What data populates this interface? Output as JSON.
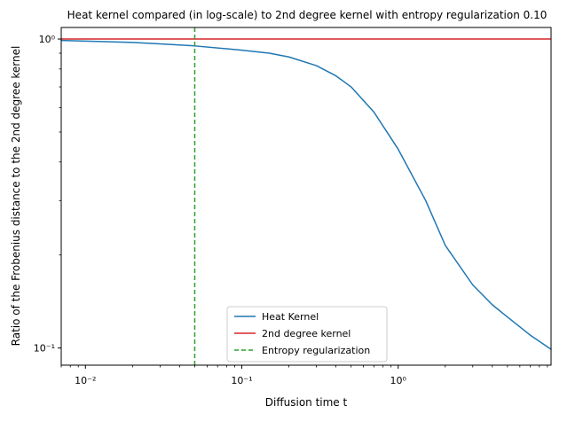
{
  "chart_data": {
    "type": "line",
    "title": "Heat kernel compared (in log-scale) to 2nd degree kernel with entropy regularization 0.10",
    "xlabel": "Diffusion time t",
    "ylabel": "Ratio of the Frobenius distance to the 2nd degree kernel",
    "xscale": "log",
    "yscale": "log",
    "xlim": [
      0.007,
      9.5
    ],
    "ylim": [
      0.088,
      1.09
    ],
    "grid": false,
    "legend_position": "lower-center",
    "x_ticks": [
      {
        "value": 0.01,
        "label": "10⁻²"
      },
      {
        "value": 0.1,
        "label": "10⁻¹"
      },
      {
        "value": 1,
        "label": "10⁰"
      }
    ],
    "y_ticks": [
      {
        "value": 0.1,
        "label": "10⁻¹"
      },
      {
        "value": 1,
        "label": "10⁰"
      }
    ],
    "series": [
      {
        "name": "Heat Kernel",
        "kind": "line",
        "color": "#1f77b4",
        "x": [
          0.007,
          0.01,
          0.02,
          0.03,
          0.05,
          0.08,
          0.1,
          0.15,
          0.2,
          0.3,
          0.4,
          0.5,
          0.7,
          1.0,
          1.5,
          2.0,
          3.0,
          4.0,
          5.0,
          7.0,
          9.5
        ],
        "y": [
          0.99,
          0.985,
          0.975,
          0.965,
          0.95,
          0.93,
          0.92,
          0.9,
          0.875,
          0.82,
          0.76,
          0.7,
          0.58,
          0.44,
          0.3,
          0.215,
          0.16,
          0.138,
          0.126,
          0.11,
          0.099
        ]
      },
      {
        "name": "2nd degree kernel",
        "kind": "hline",
        "color": "#d62728",
        "y": 1.0
      },
      {
        "name": "Entropy regularization",
        "kind": "vline",
        "color": "#2ca02c",
        "dashed": true,
        "x": 0.05
      }
    ]
  }
}
